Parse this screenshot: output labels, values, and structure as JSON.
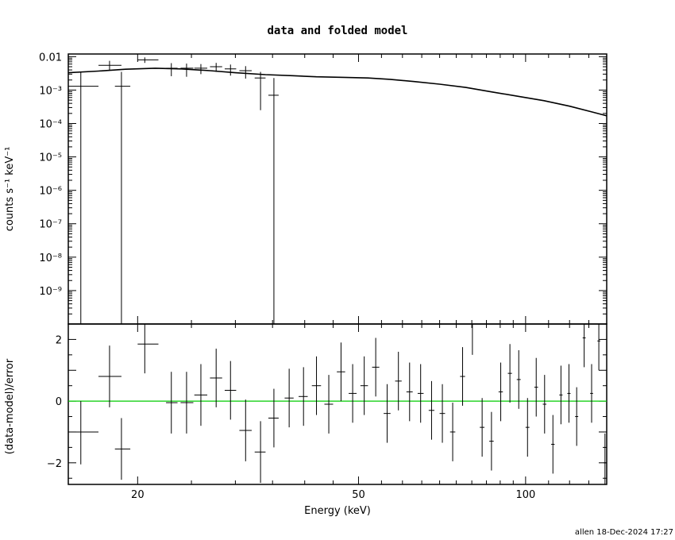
{
  "chart_data": [
    {
      "type": "scatter",
      "title": "data and folded model",
      "ylabel": "counts s⁻¹ keV⁻¹",
      "xscale": "log",
      "yscale": "log",
      "xlim": [
        15,
        140
      ],
      "ylim": [
        1e-10,
        0.012
      ],
      "ytick_labels": [
        "0.01",
        "10⁻³",
        "10⁻⁴",
        "10⁻⁵",
        "10⁻⁶",
        "10⁻⁷",
        "10⁻⁸",
        "10⁻⁹"
      ],
      "ytick_values": [
        0.01,
        0.001,
        0.0001,
        1e-05,
        1e-06,
        1e-07,
        1e-08,
        1e-09
      ],
      "data_points": [
        {
          "x": 15.8,
          "xlo": 15.0,
          "xhi": 17.0,
          "y": 0.0013,
          "ylo": 1e-10,
          "yhi": 0.0035
        },
        {
          "x": 17.8,
          "xlo": 17.0,
          "xhi": 18.7,
          "y": 0.0055,
          "ylo": 0.004,
          "yhi": 0.0075
        },
        {
          "x": 18.7,
          "xlo": 18.2,
          "xhi": 19.4,
          "y": 0.0013,
          "ylo": 1e-10,
          "yhi": 0.0035
        },
        {
          "x": 20.6,
          "xlo": 20.0,
          "xhi": 21.8,
          "y": 0.008,
          "ylo": 0.0065,
          "yhi": 0.0095
        },
        {
          "x": 23.0,
          "xlo": 22.5,
          "xhi": 23.6,
          "y": 0.0045,
          "ylo": 0.0026,
          "yhi": 0.0064
        },
        {
          "x": 24.5,
          "xlo": 23.9,
          "xhi": 25.2,
          "y": 0.0045,
          "ylo": 0.0025,
          "yhi": 0.0062
        },
        {
          "x": 26.0,
          "xlo": 25.3,
          "xhi": 26.7,
          "y": 0.0045,
          "ylo": 0.003,
          "yhi": 0.006
        },
        {
          "x": 27.7,
          "xlo": 27.0,
          "xhi": 28.4,
          "y": 0.005,
          "ylo": 0.0035,
          "yhi": 0.0065
        },
        {
          "x": 29.4,
          "xlo": 28.7,
          "xhi": 30.1,
          "y": 0.0043,
          "ylo": 0.0027,
          "yhi": 0.0058
        },
        {
          "x": 31.3,
          "xlo": 30.5,
          "xhi": 32.1,
          "y": 0.0038,
          "ylo": 0.0022,
          "yhi": 0.0052
        },
        {
          "x": 33.3,
          "xlo": 32.5,
          "xhi": 34.0,
          "y": 0.0023,
          "ylo": 0.00025,
          "yhi": 0.0035
        },
        {
          "x": 35.2,
          "xlo": 34.4,
          "xhi": 35.9,
          "y": 0.0007,
          "ylo": 1e-10,
          "yhi": 0.0023
        }
      ],
      "model_line": [
        [
          15.0,
          0.0033
        ],
        [
          17.0,
          0.0037
        ],
        [
          19.0,
          0.0042
        ],
        [
          21.5,
          0.0045
        ],
        [
          24.0,
          0.0043
        ],
        [
          27.0,
          0.0038
        ],
        [
          30.0,
          0.0033
        ],
        [
          34.0,
          0.0029
        ],
        [
          38.0,
          0.0027
        ],
        [
          42.0,
          0.0025
        ],
        [
          47.0,
          0.0024
        ],
        [
          52.0,
          0.0023
        ],
        [
          57.0,
          0.0021
        ],
        [
          63.0,
          0.0018
        ],
        [
          70.0,
          0.0015
        ],
        [
          78.0,
          0.0012
        ],
        [
          87.0,
          0.00088
        ],
        [
          97.0,
          0.00065
        ],
        [
          108.0,
          0.00048
        ],
        [
          120.0,
          0.00033
        ],
        [
          132.0,
          0.00022
        ],
        [
          140.0,
          0.00017
        ]
      ]
    },
    {
      "type": "scatter",
      "xlabel": "Energy (keV)",
      "ylabel": "(data-model)/error",
      "xscale": "log",
      "xlim": [
        15,
        140
      ],
      "ylim": [
        -2.7,
        2.5
      ],
      "xtick_labels": [
        "20",
        "50",
        "100"
      ],
      "xtick_values": [
        20,
        50,
        100
      ],
      "ytick_labels": [
        "2",
        "0",
        "−2"
      ],
      "ytick_values": [
        2,
        0,
        -2
      ],
      "reference_line": {
        "y": 0,
        "color": "#00cc00"
      },
      "residuals": [
        {
          "x": 15.8,
          "xlo": 15.0,
          "xhi": 17.0,
          "y": -1.0,
          "ylo": -2.05,
          "yhi": 0.0
        },
        {
          "x": 17.8,
          "xlo": 17.0,
          "xhi": 18.7,
          "y": 0.8,
          "ylo": -0.2,
          "yhi": 1.8
        },
        {
          "x": 18.7,
          "xlo": 18.2,
          "xhi": 19.4,
          "y": -1.55,
          "ylo": -2.55,
          "yhi": -0.55
        },
        {
          "x": 20.6,
          "xlo": 20.0,
          "xhi": 21.8,
          "y": 1.85,
          "ylo": 0.9,
          "yhi": 2.5
        },
        {
          "x": 23.0,
          "xlo": 22.5,
          "xhi": 23.6,
          "y": -0.05,
          "ylo": -1.05,
          "yhi": 0.95
        },
        {
          "x": 24.5,
          "xlo": 23.9,
          "xhi": 25.2,
          "y": -0.05,
          "ylo": -1.05,
          "yhi": 0.95
        },
        {
          "x": 26.0,
          "xlo": 25.3,
          "xhi": 26.7,
          "y": 0.2,
          "ylo": -0.8,
          "yhi": 1.2
        },
        {
          "x": 27.7,
          "xlo": 27.0,
          "xhi": 28.4,
          "y": 0.75,
          "ylo": -0.2,
          "yhi": 1.7
        },
        {
          "x": 29.4,
          "xlo": 28.7,
          "xhi": 30.1,
          "y": 0.35,
          "ylo": -0.6,
          "yhi": 1.3
        },
        {
          "x": 31.3,
          "xlo": 30.5,
          "xhi": 32.1,
          "y": -0.95,
          "ylo": -1.95,
          "yhi": 0.05
        },
        {
          "x": 33.3,
          "xlo": 32.5,
          "xhi": 34.0,
          "y": -1.65,
          "ylo": -2.65,
          "yhi": -0.65
        },
        {
          "x": 35.2,
          "xlo": 34.4,
          "xhi": 35.9,
          "y": -0.55,
          "ylo": -1.5,
          "yhi": 0.4
        },
        {
          "x": 37.5,
          "xlo": 36.8,
          "xhi": 38.2,
          "y": 0.1,
          "ylo": -0.85,
          "yhi": 1.05
        },
        {
          "x": 39.8,
          "xlo": 39.0,
          "xhi": 40.5,
          "y": 0.15,
          "ylo": -0.8,
          "yhi": 1.1
        },
        {
          "x": 42.0,
          "xlo": 41.2,
          "xhi": 42.8,
          "y": 0.5,
          "ylo": -0.45,
          "yhi": 1.45
        },
        {
          "x": 44.2,
          "xlo": 43.4,
          "xhi": 45.0,
          "y": -0.1,
          "ylo": -1.05,
          "yhi": 0.85
        },
        {
          "x": 46.5,
          "xlo": 45.7,
          "xhi": 47.3,
          "y": 0.95,
          "ylo": 0.0,
          "yhi": 1.9
        },
        {
          "x": 48.8,
          "xlo": 48.0,
          "xhi": 49.6,
          "y": 0.25,
          "ylo": -0.7,
          "yhi": 1.2
        },
        {
          "x": 51.2,
          "xlo": 50.4,
          "xhi": 52.0,
          "y": 0.5,
          "ylo": -0.45,
          "yhi": 1.45
        },
        {
          "x": 53.7,
          "xlo": 52.9,
          "xhi": 54.5,
          "y": 1.1,
          "ylo": 0.15,
          "yhi": 2.05
        },
        {
          "x": 56.3,
          "xlo": 55.5,
          "xhi": 57.1,
          "y": -0.4,
          "ylo": -1.35,
          "yhi": 0.55
        },
        {
          "x": 59.0,
          "xlo": 58.2,
          "xhi": 59.8,
          "y": 0.65,
          "ylo": -0.3,
          "yhi": 1.6
        },
        {
          "x": 61.8,
          "xlo": 61.0,
          "xhi": 62.6,
          "y": 0.3,
          "ylo": -0.65,
          "yhi": 1.25
        },
        {
          "x": 64.7,
          "xlo": 63.9,
          "xhi": 65.5,
          "y": 0.25,
          "ylo": -0.7,
          "yhi": 1.2
        },
        {
          "x": 67.7,
          "xlo": 66.9,
          "xhi": 68.5,
          "y": -0.3,
          "ylo": -1.25,
          "yhi": 0.65
        },
        {
          "x": 70.8,
          "xlo": 70.0,
          "xhi": 71.6,
          "y": -0.4,
          "ylo": -1.35,
          "yhi": 0.55
        },
        {
          "x": 73.9,
          "xlo": 73.1,
          "xhi": 74.7,
          "y": -1.0,
          "ylo": -1.95,
          "yhi": -0.05
        },
        {
          "x": 77.0,
          "xlo": 76.2,
          "xhi": 77.8,
          "y": 0.8,
          "ylo": -0.15,
          "yhi": 1.75
        },
        {
          "x": 80.2,
          "xlo": 79.4,
          "xhi": 81.0,
          "y": 2.5,
          "ylo": 1.5,
          "yhi": 2.5
        },
        {
          "x": 83.5,
          "xlo": 82.7,
          "xhi": 84.3,
          "y": -0.85,
          "ylo": -1.8,
          "yhi": 0.1
        },
        {
          "x": 86.8,
          "xlo": 86.0,
          "xhi": 87.6,
          "y": -1.3,
          "ylo": -2.25,
          "yhi": -0.35
        },
        {
          "x": 90.2,
          "xlo": 89.4,
          "xhi": 91.0,
          "y": 0.3,
          "ylo": -0.65,
          "yhi": 1.25
        },
        {
          "x": 93.7,
          "xlo": 92.9,
          "xhi": 94.5,
          "y": 0.9,
          "ylo": -0.05,
          "yhi": 1.85
        },
        {
          "x": 97.2,
          "xlo": 96.4,
          "xhi": 98.0,
          "y": 0.7,
          "ylo": -0.25,
          "yhi": 1.65
        },
        {
          "x": 100.8,
          "xlo": 100.0,
          "xhi": 101.6,
          "y": -0.85,
          "ylo": -1.8,
          "yhi": 0.1
        },
        {
          "x": 104.5,
          "xlo": 103.7,
          "xhi": 105.3,
          "y": 0.45,
          "ylo": -0.5,
          "yhi": 1.4
        },
        {
          "x": 108.2,
          "xlo": 107.4,
          "xhi": 109.0,
          "y": -0.1,
          "ylo": -1.05,
          "yhi": 0.85
        },
        {
          "x": 112.0,
          "xlo": 111.2,
          "xhi": 112.8,
          "y": -1.4,
          "ylo": -2.35,
          "yhi": -0.45
        },
        {
          "x": 115.8,
          "xlo": 115.0,
          "xhi": 116.6,
          "y": 0.2,
          "ylo": -0.75,
          "yhi": 1.15
        },
        {
          "x": 119.7,
          "xlo": 118.9,
          "xhi": 120.5,
          "y": 0.25,
          "ylo": -0.7,
          "yhi": 1.2
        },
        {
          "x": 123.6,
          "xlo": 122.8,
          "xhi": 124.4,
          "y": -0.5,
          "ylo": -1.45,
          "yhi": 0.45
        },
        {
          "x": 127.5,
          "xlo": 126.7,
          "xhi": 128.3,
          "y": 2.05,
          "ylo": 1.1,
          "yhi": 2.5
        },
        {
          "x": 131.5,
          "xlo": 130.7,
          "xhi": 132.3,
          "y": 0.25,
          "ylo": -0.7,
          "yhi": 1.2
        },
        {
          "x": 135.5,
          "xlo": 134.7,
          "xhi": 136.3,
          "y": 1.95,
          "ylo": 1.0,
          "yhi": 2.5
        },
        {
          "x": 139.0,
          "xlo": 138.2,
          "xhi": 140.0,
          "y": -2.0,
          "ylo": -2.7,
          "yhi": -1.05
        }
      ]
    }
  ],
  "footer": {
    "stamp": "allen 18-Dec-2024 17:27"
  }
}
